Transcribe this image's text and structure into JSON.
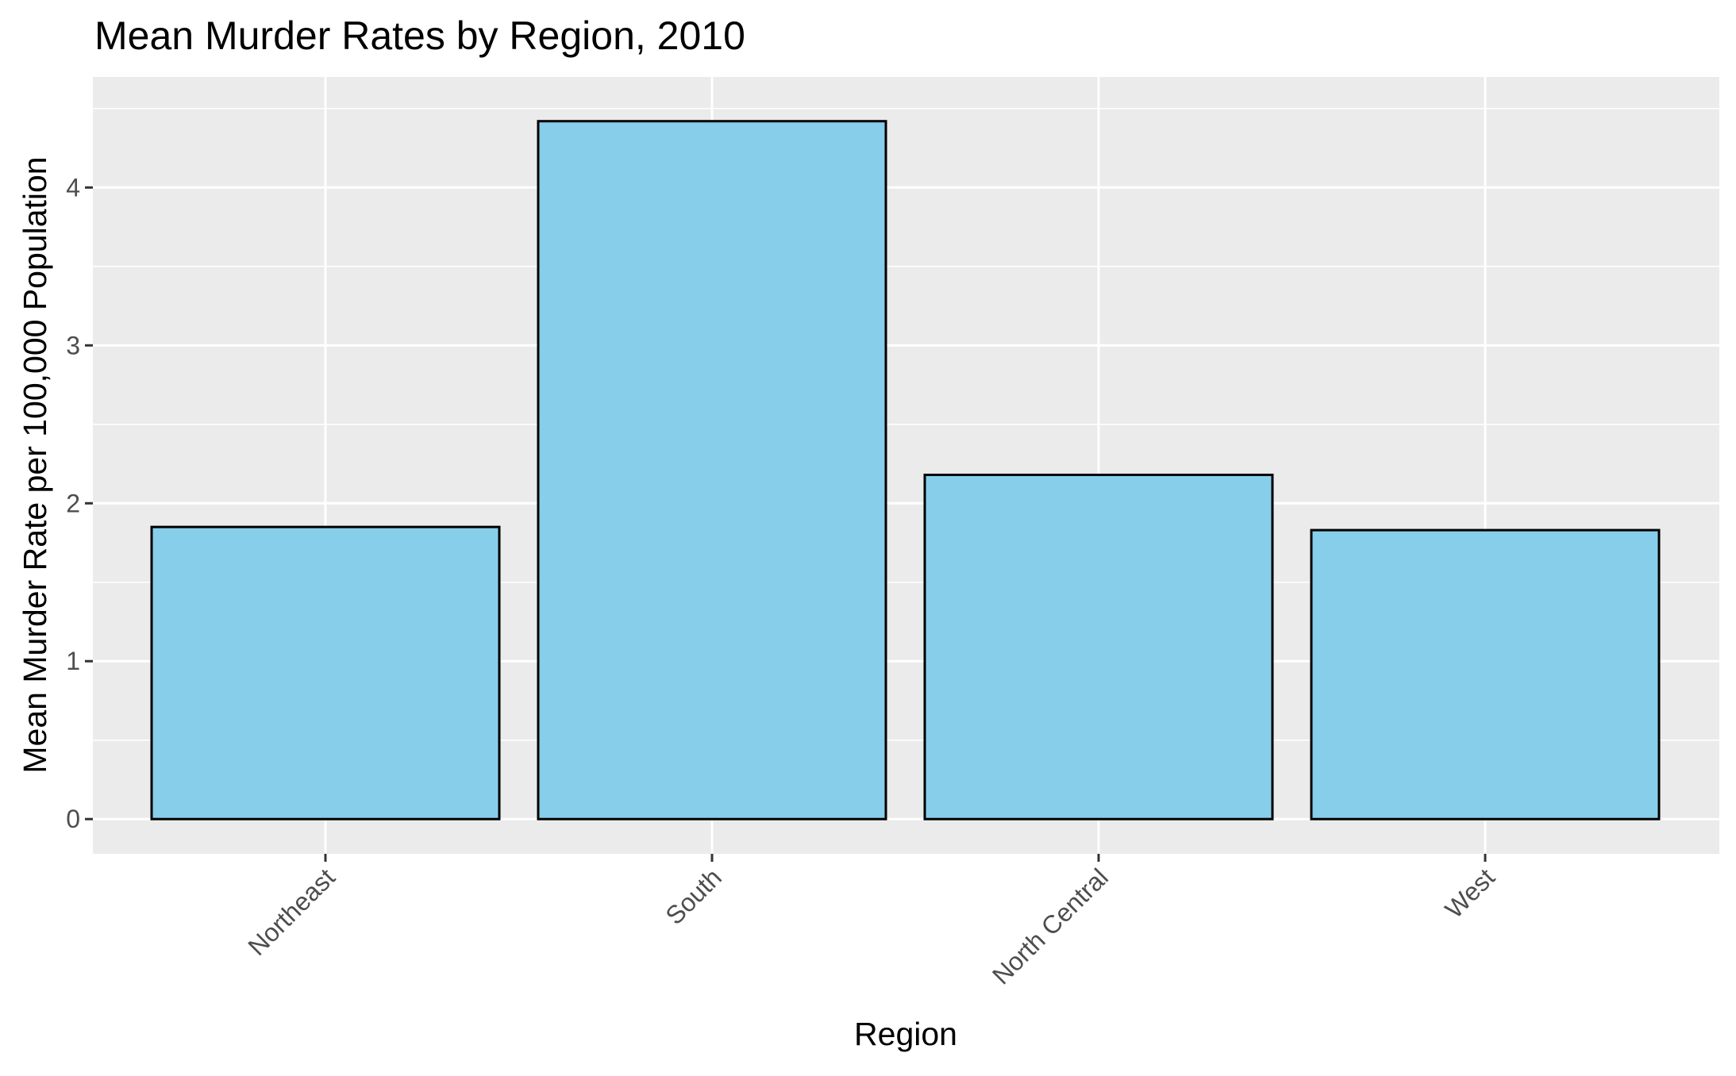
{
  "chart_data": {
    "type": "bar",
    "title": "Mean Murder Rates by Region, 2010",
    "xlabel": "Region",
    "ylabel": "Mean Murder Rate per 100,000 Population",
    "categories": [
      "Northeast",
      "South",
      "North Central",
      "West"
    ],
    "values": [
      1.85,
      4.42,
      2.18,
      1.83
    ],
    "ylim": [
      -0.22,
      4.7
    ],
    "yticks": [
      0,
      1,
      2,
      3,
      4
    ],
    "ytick_labels": [
      "0",
      "1",
      "2",
      "3",
      "4"
    ],
    "grid": true,
    "legend": "none",
    "colors": {
      "bar_fill": "#87CEEB",
      "bar_stroke": "#000000",
      "panel_background": "#EBEBEB",
      "grid_line": "#FFFFFF",
      "tick_text": "#4D4D4D",
      "title_text": "#000000"
    }
  }
}
